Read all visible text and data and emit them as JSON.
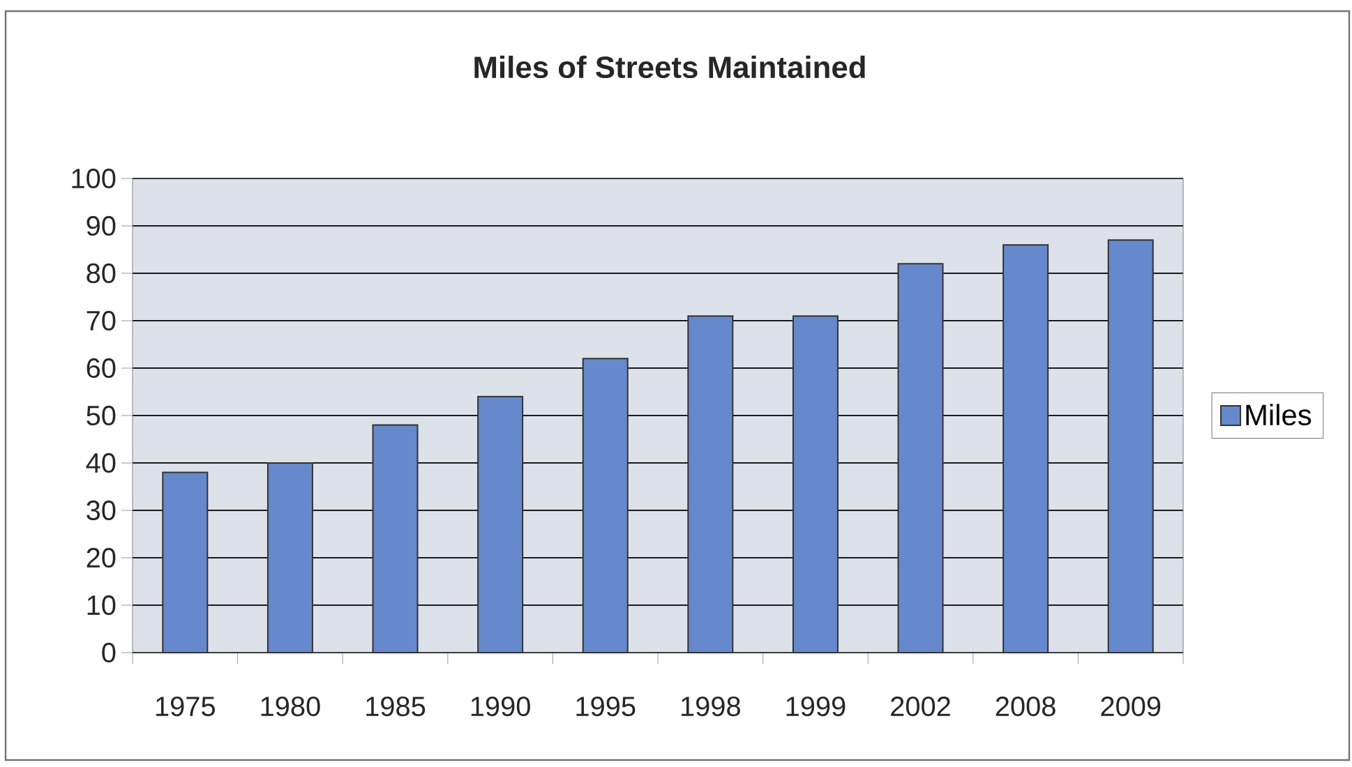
{
  "chart_data": {
    "type": "bar",
    "title": "Miles of Streets Maintained",
    "categories": [
      "1975",
      "1980",
      "1985",
      "1990",
      "1995",
      "1998",
      "1999",
      "2002",
      "2008",
      "2009"
    ],
    "series": [
      {
        "name": "Miles",
        "color": "#6688cc",
        "values": [
          38,
          40,
          48,
          54,
          62,
          71,
          71,
          82,
          86,
          87
        ]
      }
    ],
    "ylim": [
      0,
      100
    ],
    "yticks": [
      0,
      10,
      20,
      30,
      40,
      50,
      60,
      70,
      80,
      90,
      100
    ],
    "grid": "y",
    "legend": "right"
  }
}
